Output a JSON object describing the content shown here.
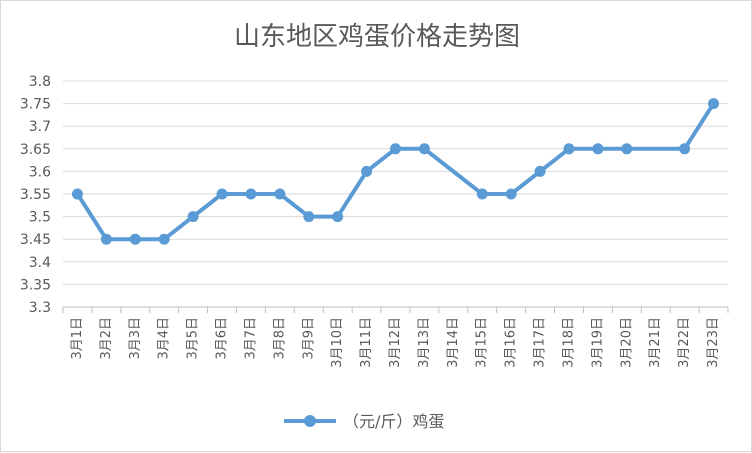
{
  "chart_data": {
    "type": "line",
    "title": "山东地区鸡蛋价格走势图",
    "xlabel": "",
    "ylabel": "",
    "categories": [
      "3月1日",
      "3月2日",
      "3月3日",
      "3月4日",
      "3月5日",
      "3月6日",
      "3月7日",
      "3月8日",
      "3月9日",
      "3月10日",
      "3月11日",
      "3月12日",
      "3月13日",
      "3月14日",
      "3月15日",
      "3月16日",
      "3月17日",
      "3月18日",
      "3月19日",
      "3月20日",
      "3月21日",
      "3月22日",
      "3月23日"
    ],
    "x_values": [
      1,
      2,
      3,
      4,
      5,
      6,
      7,
      8,
      9,
      10,
      11,
      12,
      13,
      15,
      16,
      17,
      18,
      19,
      20,
      22,
      23
    ],
    "series": [
      {
        "name": "（元/斤）鸡蛋",
        "x": [
          "3月1日",
          "3月2日",
          "3月3日",
          "3月4日",
          "3月5日",
          "3月6日",
          "3月7日",
          "3月8日",
          "3月9日",
          "3月10日",
          "3月11日",
          "3月12日",
          "3月13日",
          "3月15日",
          "3月16日",
          "3月17日",
          "3月18日",
          "3月19日",
          "3月20日",
          "3月22日",
          "3月23日"
        ],
        "values": [
          3.55,
          3.45,
          3.45,
          3.45,
          3.5,
          3.55,
          3.55,
          3.55,
          3.5,
          3.5,
          3.6,
          3.65,
          3.65,
          3.55,
          3.55,
          3.6,
          3.65,
          3.65,
          3.65,
          3.65,
          3.75
        ],
        "color": "#5b9bd5"
      }
    ],
    "ylim": [
      3.3,
      3.8
    ],
    "yticks": [
      "3.3",
      "3.35",
      "3.4",
      "3.45",
      "3.5",
      "3.55",
      "3.6",
      "3.65",
      "3.7",
      "3.75",
      "3.8"
    ],
    "grid": true,
    "legend": "bottom"
  }
}
